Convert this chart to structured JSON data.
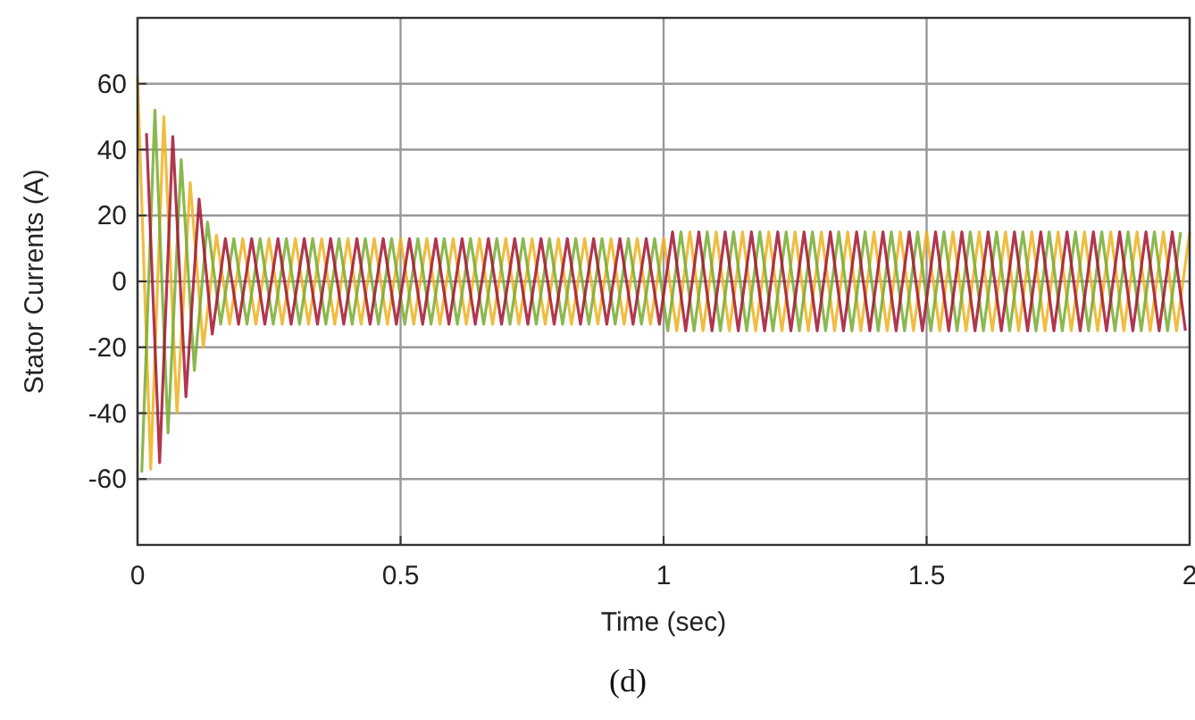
{
  "chart_data": {
    "type": "line",
    "xlabel": "Time (sec)",
    "ylabel": "Stator Currents (A)",
    "annotations": [
      "(d)"
    ],
    "xlim": [
      0,
      2
    ],
    "xticks": [
      0,
      0.5,
      1,
      1.5,
      2
    ],
    "ylim": [
      -80,
      80
    ],
    "yticks": [
      -60,
      -40,
      -20,
      0,
      20,
      40,
      60
    ],
    "grid": true,
    "line_style": "solid",
    "series": [
      {
        "color": "#edb120",
        "x": [
          0,
          0.025,
          0.05,
          0.075,
          0.1,
          0.125,
          0.15,
          0.175,
          0.2,
          0.225,
          0.25,
          0.275,
          0.3,
          0.325,
          0.35,
          0.375,
          0.4,
          0.425,
          0.45,
          0.475,
          0.5,
          0.525,
          0.55,
          0.575,
          0.6,
          0.625,
          0.65,
          0.675,
          0.7,
          0.725,
          0.75,
          0.775,
          0.8,
          0.825,
          0.85,
          0.875,
          0.9,
          0.925,
          0.95,
          0.975,
          1,
          1.025,
          1.05,
          1.075,
          1.1,
          1.125,
          1.15,
          1.175,
          1.2,
          1.225,
          1.25,
          1.275,
          1.3,
          1.325,
          1.35,
          1.375,
          1.4,
          1.425,
          1.45,
          1.475,
          1.5,
          1.525,
          1.55,
          1.575,
          1.6,
          1.625,
          1.65,
          1.675,
          1.7,
          1.725,
          1.75,
          1.775,
          1.8,
          1.825,
          1.85,
          1.875,
          1.9,
          1.925,
          1.95,
          1.975,
          2
        ],
        "values": [
          62,
          -57,
          50,
          -40,
          30,
          -20,
          14,
          -13,
          13,
          -13,
          13,
          -13,
          13,
          -13,
          13,
          -13,
          13,
          -13,
          13,
          -13,
          13,
          -13,
          13,
          -13,
          13,
          -13,
          13,
          -13,
          13,
          -13,
          13,
          -13,
          13,
          -13,
          13,
          -13,
          13,
          -13,
          13,
          -13,
          13,
          -15,
          15,
          -15,
          15,
          -15,
          15,
          -15,
          15,
          -15,
          15,
          -15,
          15,
          -15,
          15,
          -15,
          15,
          -15,
          15,
          -15,
          15,
          -15,
          15,
          -15,
          15,
          -15,
          15,
          -15,
          15,
          -15,
          15,
          -15,
          15,
          -15,
          15,
          -15,
          15,
          -15,
          15,
          -15,
          15
        ]
      },
      {
        "color": "#77ac30",
        "x": [
          0.008,
          0.033,
          0.058,
          0.083,
          0.108,
          0.133,
          0.158,
          0.183,
          0.208,
          0.233,
          0.258,
          0.283,
          0.308,
          0.333,
          0.358,
          0.383,
          0.408,
          0.433,
          0.458,
          0.483,
          0.508,
          0.533,
          0.558,
          0.583,
          0.608,
          0.633,
          0.658,
          0.683,
          0.708,
          0.733,
          0.758,
          0.783,
          0.808,
          0.833,
          0.858,
          0.883,
          0.908,
          0.933,
          0.958,
          0.983,
          1.008,
          1.033,
          1.058,
          1.083,
          1.108,
          1.133,
          1.158,
          1.183,
          1.208,
          1.233,
          1.258,
          1.283,
          1.308,
          1.333,
          1.358,
          1.383,
          1.408,
          1.433,
          1.458,
          1.483,
          1.508,
          1.533,
          1.558,
          1.583,
          1.608,
          1.633,
          1.658,
          1.683,
          1.708,
          1.733,
          1.758,
          1.783,
          1.808,
          1.833,
          1.858,
          1.883,
          1.908,
          1.933,
          1.958,
          1.983
        ],
        "values": [
          -58,
          52,
          -46,
          37,
          -27,
          18,
          -13,
          13,
          -13,
          13,
          -13,
          13,
          -13,
          13,
          -13,
          13,
          -13,
          13,
          -13,
          13,
          -13,
          13,
          -13,
          13,
          -13,
          13,
          -13,
          13,
          -13,
          13,
          -13,
          13,
          -13,
          13,
          -13,
          13,
          -13,
          13,
          -13,
          13,
          -15,
          15,
          -15,
          15,
          -15,
          15,
          -15,
          15,
          -15,
          15,
          -15,
          15,
          -15,
          15,
          -15,
          15,
          -15,
          15,
          -15,
          15,
          -15,
          15,
          -15,
          15,
          -15,
          15,
          -15,
          15,
          -15,
          15,
          -15,
          15,
          -15,
          15,
          -15,
          15,
          -15,
          15,
          -15,
          15
        ]
      },
      {
        "color": "#a2142f",
        "x": [
          0.017,
          0.042,
          0.067,
          0.092,
          0.117,
          0.142,
          0.167,
          0.192,
          0.217,
          0.242,
          0.267,
          0.292,
          0.317,
          0.342,
          0.367,
          0.392,
          0.417,
          0.442,
          0.467,
          0.492,
          0.517,
          0.542,
          0.567,
          0.592,
          0.617,
          0.642,
          0.667,
          0.692,
          0.717,
          0.742,
          0.767,
          0.792,
          0.817,
          0.842,
          0.867,
          0.892,
          0.917,
          0.942,
          0.967,
          0.992,
          1.017,
          1.042,
          1.067,
          1.092,
          1.117,
          1.142,
          1.167,
          1.192,
          1.217,
          1.242,
          1.267,
          1.292,
          1.317,
          1.342,
          1.367,
          1.392,
          1.417,
          1.442,
          1.467,
          1.492,
          1.517,
          1.542,
          1.567,
          1.592,
          1.617,
          1.642,
          1.667,
          1.692,
          1.717,
          1.742,
          1.767,
          1.792,
          1.817,
          1.842,
          1.867,
          1.892,
          1.917,
          1.942,
          1.967,
          1.992
        ],
        "values": [
          45,
          -55,
          44,
          -35,
          25,
          -16,
          13,
          -13,
          13,
          -13,
          13,
          -13,
          13,
          -13,
          13,
          -13,
          13,
          -13,
          13,
          -13,
          13,
          -13,
          13,
          -13,
          13,
          -13,
          13,
          -13,
          13,
          -13,
          13,
          -13,
          13,
          -13,
          13,
          -13,
          13,
          -13,
          13,
          -13,
          15,
          -15,
          15,
          -15,
          15,
          -15,
          15,
          -15,
          15,
          -15,
          15,
          -15,
          15,
          -15,
          15,
          -15,
          15,
          -15,
          15,
          -15,
          15,
          -15,
          15,
          -15,
          15,
          -15,
          15,
          -15,
          15,
          -15,
          15,
          -15,
          15,
          -15,
          15,
          -15,
          15,
          -15,
          15,
          -15
        ]
      }
    ]
  }
}
